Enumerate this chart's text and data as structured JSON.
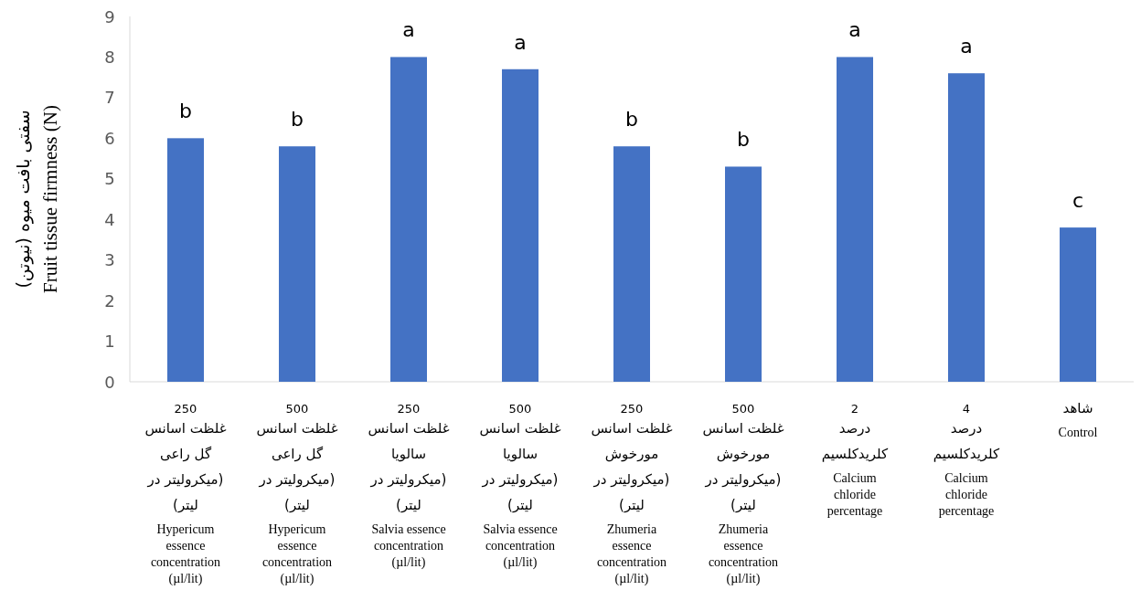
{
  "chart_data": {
    "type": "bar",
    "ylabel": "سفتی بافت میوه (نیوتن)\nFruit tissue firmness (N)",
    "categories": [
      "250\nغلظت اسانس\nگل راعی\n(میکرولیتر در\nلیتر)\nHypericum\nessence\nconcentration\n(µl/lit)",
      "500\nغلظت اسانس\nگل راعی\n(میکرولیتر در\nلیتر)\nHypericum\nessence\nconcentration\n(µl/lit)",
      "250\nغلظت اسانس\nسالویا\n(میکرولیتر در\nلیتر)\nSalvia essence\nconcentration\n(µl/lit)",
      "500\nغلظت اسانس\nسالویا\n(میکرولیتر در\nلیتر)\nSalvia essence\nconcentration\n(µl/lit)",
      "250\nغلظت اسانس\nمورخوش\n(میکرولیتر در\nلیتر)\nZhumeria\nessence\nconcentration\n(µl/lit)",
      "500\nغلظت اسانس\nمورخوش\n(میکرولیتر در\nلیتر)\nZhumeria\nessence\nconcentration\n(µl/lit)",
      "2\nدرصد\nکلریدکلسیم\nCalcium\nchloride\npercentage",
      "4\nدرصد\nکلریدکلسیم\nCalcium\nchloride\npercentage",
      "شاهد\nControl"
    ],
    "values": [
      6.0,
      5.8,
      8.0,
      7.7,
      5.8,
      5.3,
      8.0,
      7.6,
      3.8
    ],
    "color": "#4472c4",
    "ylim": [
      0,
      9
    ],
    "yticks": [
      0,
      1,
      2,
      3,
      4,
      5,
      6,
      7,
      8,
      9
    ],
    "annotations": [
      {
        "text": "b",
        "x": "250\nغلظت اسانس\nگل راعی\n(میکرولیتر در\nلیتر)\nHypericum\nessence\nconcentration\n(µl/lit)",
        "y": 6.0
      },
      {
        "text": "b",
        "x": "500\nغلظت اسانس\nگل راعی\n(میکرولیتر در\nلیتر)\nHypericum\nessence\nconcentration\n(µl/lit)",
        "y": 5.8
      },
      {
        "text": "a",
        "x": "250\nغلظت اسانس\nسالویا\n(میکرولیتر در\nلیتر)\nSalvia essence\nconcentration\n(µl/lit)",
        "y": 8.0
      },
      {
        "text": "a",
        "x": "500\nغلظت اسانس\nسالویا\n(میکرولیتر در\nلیتر)\nSalvia essence\nconcentration\n(µl/lit)",
        "y": 7.7
      },
      {
        "text": "b",
        "x": "250\nغلظت اسانس\nمورخوش\n(میکرولیتر در\nلیتر)\nZhumeria\nessence\nconcentration\n(µl/lit)",
        "y": 5.8
      },
      {
        "text": "b",
        "x": "500\nغلظت اسانس\nمورخوش\n(میکرولیتر در\nلیتر)\nZhumeria\nessence\nconcentration\n(µl/lit)",
        "y": 5.3
      },
      {
        "text": "a",
        "x": "2\nدرصد\nکلریدکلسیم\nCalcium\nchloride\npercentage",
        "y": 8.0
      },
      {
        "text": "a",
        "x": "4\nدرصد\nکلریدکلسیم\nCalcium\nchloride\npercentage",
        "y": 7.6
      },
      {
        "text": "c",
        "x": "شاهد\nControl",
        "y": 3.8
      }
    ]
  }
}
